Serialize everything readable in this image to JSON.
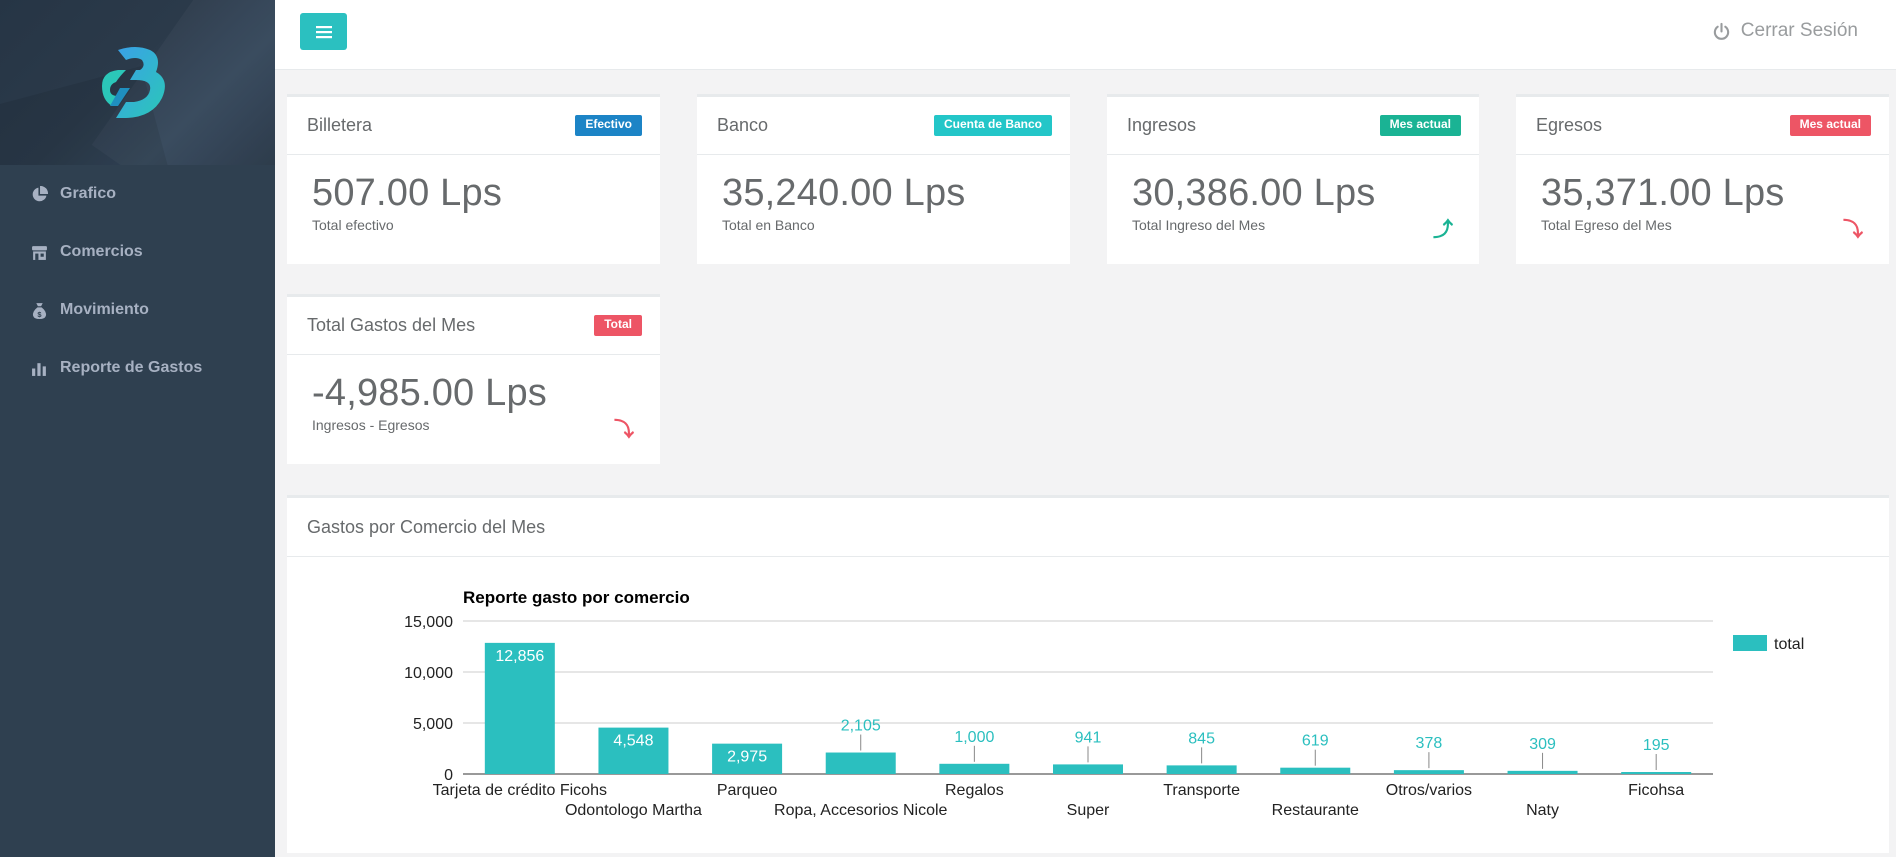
{
  "sidebar": {
    "items": [
      {
        "label": "Grafico",
        "icon": "pie-chart-icon"
      },
      {
        "label": "Comercios",
        "icon": "store-icon"
      },
      {
        "label": "Movimiento",
        "icon": "money-bag-icon"
      },
      {
        "label": "Reporte de Gastos",
        "icon": "bar-chart-icon"
      }
    ]
  },
  "topbar": {
    "logout_label": "Cerrar Sesión"
  },
  "cards": {
    "billetera": {
      "title": "Billetera",
      "badge": "Efectivo",
      "badge_color": "#1c84c6",
      "value": "507.00 Lps",
      "caption": "Total efectivo"
    },
    "banco": {
      "title": "Banco",
      "badge": "Cuenta de Banco",
      "badge_color": "#23c6c8",
      "value": "35,240.00 Lps",
      "caption": "Total en Banco"
    },
    "ingresos": {
      "title": "Ingresos",
      "badge": "Mes actual",
      "badge_color": "#1ab394",
      "value": "30,386.00 Lps",
      "caption": "Total Ingreso del Mes",
      "trend_icon": "arrow-up-icon",
      "trend_color": "#1ab394"
    },
    "egresos": {
      "title": "Egresos",
      "badge": "Mes actual",
      "badge_color": "#ed5565",
      "value": "35,371.00 Lps",
      "caption": "Total Egreso del Mes",
      "trend_icon": "arrow-down-icon",
      "trend_color": "#ed5565"
    },
    "gastos": {
      "title": "Total Gastos del Mes",
      "badge": "Total",
      "badge_color": "#ed5565",
      "value": "-4,985.00 Lps",
      "caption": "Ingresos - Egresos",
      "trend_icon": "arrow-down-icon",
      "trend_color": "#ed5565"
    }
  },
  "chart_panel": {
    "title": "Gastos por Comercio del Mes"
  },
  "chart_data": {
    "type": "bar",
    "title": "Reporte gasto por comercio",
    "xlabel": "",
    "ylabel": "",
    "ylim": [
      0,
      15000
    ],
    "yticks": [
      "0",
      "5,000",
      "10,000",
      "15,000"
    ],
    "grid": true,
    "legend_position": "right",
    "color": "#2bbfbf",
    "categories": [
      "Tarjeta de crédito Ficohs",
      "Odontologo Martha",
      "Parqueo",
      "Ropa, Accesorios Nicole",
      "Regalos",
      "Super",
      "Transporte",
      "Restaurante",
      "Otros/varios",
      "Naty",
      "Ficohsa"
    ],
    "series": [
      {
        "name": "total",
        "values": [
          12856,
          4548,
          2975,
          2105,
          1000,
          941,
          845,
          619,
          378,
          309,
          195
        ]
      }
    ],
    "value_labels": [
      "12,856",
      "4,548",
      "2,975",
      "2,105",
      "1,000",
      "941",
      "845",
      "619",
      "378",
      "309",
      "195"
    ]
  }
}
